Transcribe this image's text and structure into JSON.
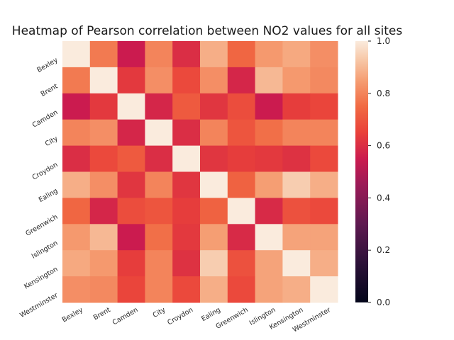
{
  "chart_data": {
    "type": "heatmap",
    "title": "Heatmap of Pearson correlation between NO2 values for all sites",
    "xlabel": "",
    "ylabel": "",
    "categories": [
      "Bexley",
      "Brent",
      "Camden",
      "City",
      "Croydon",
      "Ealing",
      "Greenwich",
      "Islington",
      "Kensington",
      "Westminster"
    ],
    "values": [
      [
        1.0,
        0.78,
        0.55,
        0.8,
        0.6,
        0.88,
        0.74,
        0.84,
        0.87,
        0.82
      ],
      [
        0.78,
        1.0,
        0.63,
        0.82,
        0.67,
        0.82,
        0.58,
        0.9,
        0.84,
        0.81
      ],
      [
        0.55,
        0.63,
        1.0,
        0.58,
        0.71,
        0.62,
        0.68,
        0.55,
        0.64,
        0.66
      ],
      [
        0.8,
        0.82,
        0.58,
        1.0,
        0.6,
        0.8,
        0.7,
        0.76,
        0.8,
        0.8
      ],
      [
        0.6,
        0.67,
        0.71,
        0.6,
        1.0,
        0.62,
        0.64,
        0.63,
        0.61,
        0.67
      ],
      [
        0.88,
        0.82,
        0.62,
        0.8,
        0.62,
        1.0,
        0.73,
        0.85,
        0.94,
        0.88
      ],
      [
        0.74,
        0.58,
        0.68,
        0.7,
        0.64,
        0.73,
        1.0,
        0.59,
        0.69,
        0.67
      ],
      [
        0.84,
        0.9,
        0.55,
        0.76,
        0.63,
        0.85,
        0.59,
        1.0,
        0.86,
        0.86
      ],
      [
        0.87,
        0.84,
        0.64,
        0.8,
        0.61,
        0.94,
        0.69,
        0.86,
        1.0,
        0.88
      ],
      [
        0.82,
        0.81,
        0.66,
        0.8,
        0.67,
        0.88,
        0.67,
        0.86,
        0.88,
        1.0
      ]
    ],
    "colorbar": {
      "min": 0.0,
      "max": 1.0,
      "ticks": [
        "0.0",
        "0.2",
        "0.4",
        "0.6",
        "0.8",
        "1.0"
      ]
    },
    "colormap": "rocket",
    "grid": false
  }
}
